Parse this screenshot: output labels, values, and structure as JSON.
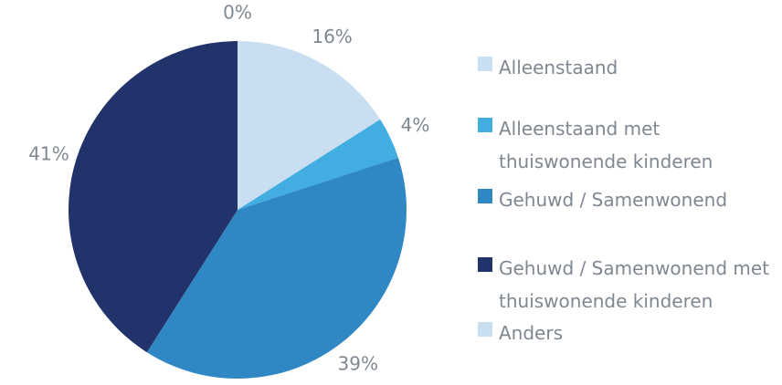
{
  "chart_data": {
    "type": "pie",
    "categories": [
      "Alleenstaand",
      "Alleenstaand met thuiswonende kinderen",
      "Gehuwd / Samenwonend",
      "Gehuwd / Samenwonend met thuiswonende kinderen",
      "Anders"
    ],
    "values": [
      16,
      4,
      39,
      41,
      0
    ],
    "value_labels": [
      "16%",
      "4%",
      "39%",
      "41%",
      "0%"
    ],
    "colors": [
      "#c9def0",
      "#41ade1",
      "#2f88c3",
      "#22336b",
      "#c9def0"
    ],
    "legend": "right"
  }
}
